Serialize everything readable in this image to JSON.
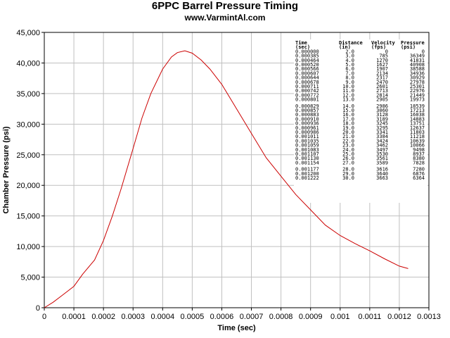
{
  "chart_data": {
    "type": "line",
    "title": "6PPC Barrel Pressure Timing",
    "subtitle": "www.VarmintAl.com",
    "xlabel": "Time (sec)",
    "ylabel": "Chamber Pressure (psi)",
    "xlim": [
      0,
      0.0013
    ],
    "ylim": [
      0,
      45000
    ],
    "grid": true,
    "x_ticks": [
      "0",
      "0.0001",
      "0.0002",
      "0.0003",
      "0.0004",
      "0.0005",
      "0.0006",
      "0.0007",
      "0.0008",
      "0.0009",
      "0.001",
      "0.0011",
      "0.0012",
      "0.0013"
    ],
    "y_ticks": [
      "0",
      "5,000",
      "10,000",
      "15,000",
      "20,000",
      "25,000",
      "30,000",
      "35,000",
      "40,000",
      "45,000"
    ],
    "series": [
      {
        "color": "#cc0000",
        "x": [
          0,
          3e-05,
          6e-05,
          0.0001,
          0.00013,
          0.00017,
          0.0002,
          0.00023,
          0.00026,
          0.0003,
          0.00033,
          0.00036,
          0.0004,
          0.00043,
          0.00045,
          0.000475,
          0.0005,
          0.00053,
          0.00056,
          0.0006,
          0.00065,
          0.0007,
          0.00075,
          0.0008,
          0.00085,
          0.0009,
          0.00095,
          0.001,
          0.00105,
          0.0011,
          0.00115,
          0.0012,
          0.00123
        ],
        "y": [
          0,
          900,
          2000,
          3500,
          5500,
          7800,
          11000,
          15000,
          19500,
          26000,
          31000,
          35000,
          39000,
          41000,
          41700,
          42000,
          41600,
          40500,
          39000,
          36500,
          32500,
          28500,
          24500,
          21500,
          18500,
          16000,
          13500,
          11800,
          10500,
          9300,
          8000,
          6800,
          6400
        ]
      }
    ],
    "table": {
      "headers": [
        [
          "Time",
          "(sec)"
        ],
        [
          "Distance",
          "(in)"
        ],
        [
          "Velocity",
          "(fps)"
        ],
        [
          "Pressure",
          "(psi)"
        ]
      ],
      "rows": [
        [
          "0.000000",
          "2.0",
          "0",
          "0"
        ],
        [
          "0.000385",
          "3.0",
          "785",
          "36349"
        ],
        [
          "0.000464",
          "4.0",
          "1270",
          "41831"
        ],
        [
          "0.000520",
          "5.0",
          "1627",
          "40908"
        ],
        [
          "0.000566",
          "6.0",
          "1907",
          "38588"
        ],
        [
          "0.000607",
          "7.0",
          "2134",
          "34936"
        ],
        [
          "0.000644",
          "8.0",
          "2317",
          "30929"
        ],
        [
          "0.000678",
          "9.0",
          "2470",
          "27978"
        ],
        [
          "0.000711",
          "10.0",
          "2601",
          "25301"
        ],
        [
          "0.000742",
          "11.0",
          "2713",
          "22976"
        ],
        [
          "0.000772",
          "12.0",
          "2814",
          "21449"
        ],
        [
          "0.000801",
          "13.0",
          "2905",
          "19973"
        ],
        [
          "0.000829",
          "14.0",
          "2986",
          "18539"
        ],
        [
          "0.000857",
          "15.0",
          "3060",
          "17213"
        ],
        [
          "0.000883",
          "16.0",
          "3128",
          "16038"
        ],
        [
          "0.000910",
          "17.0",
          "3189",
          "14883"
        ],
        [
          "0.000936",
          "18.0",
          "3245",
          "13751"
        ],
        [
          "0.000961",
          "19.0",
          "3295",
          "12637"
        ],
        [
          "0.000986",
          "20.0",
          "3341",
          "11803"
        ],
        [
          "0.001011",
          "21.0",
          "3384",
          "11218"
        ],
        [
          "0.001035",
          "22.0",
          "3424",
          "10639"
        ],
        [
          "0.001059",
          "23.0",
          "3462",
          "10066"
        ],
        [
          "0.001083",
          "24.0",
          "3497",
          "9498"
        ],
        [
          "0.001107",
          "25.0",
          "3530",
          "8937"
        ],
        [
          "0.001130",
          "26.0",
          "3561",
          "8380"
        ],
        [
          "0.001154",
          "27.0",
          "3589",
          "7828"
        ],
        [
          "0.001177",
          "28.0",
          "3616",
          "7280"
        ],
        [
          "0.001200",
          "29.0",
          "3640",
          "6876"
        ],
        [
          "0.001222",
          "30.0",
          "3663",
          "6364"
        ]
      ]
    }
  }
}
